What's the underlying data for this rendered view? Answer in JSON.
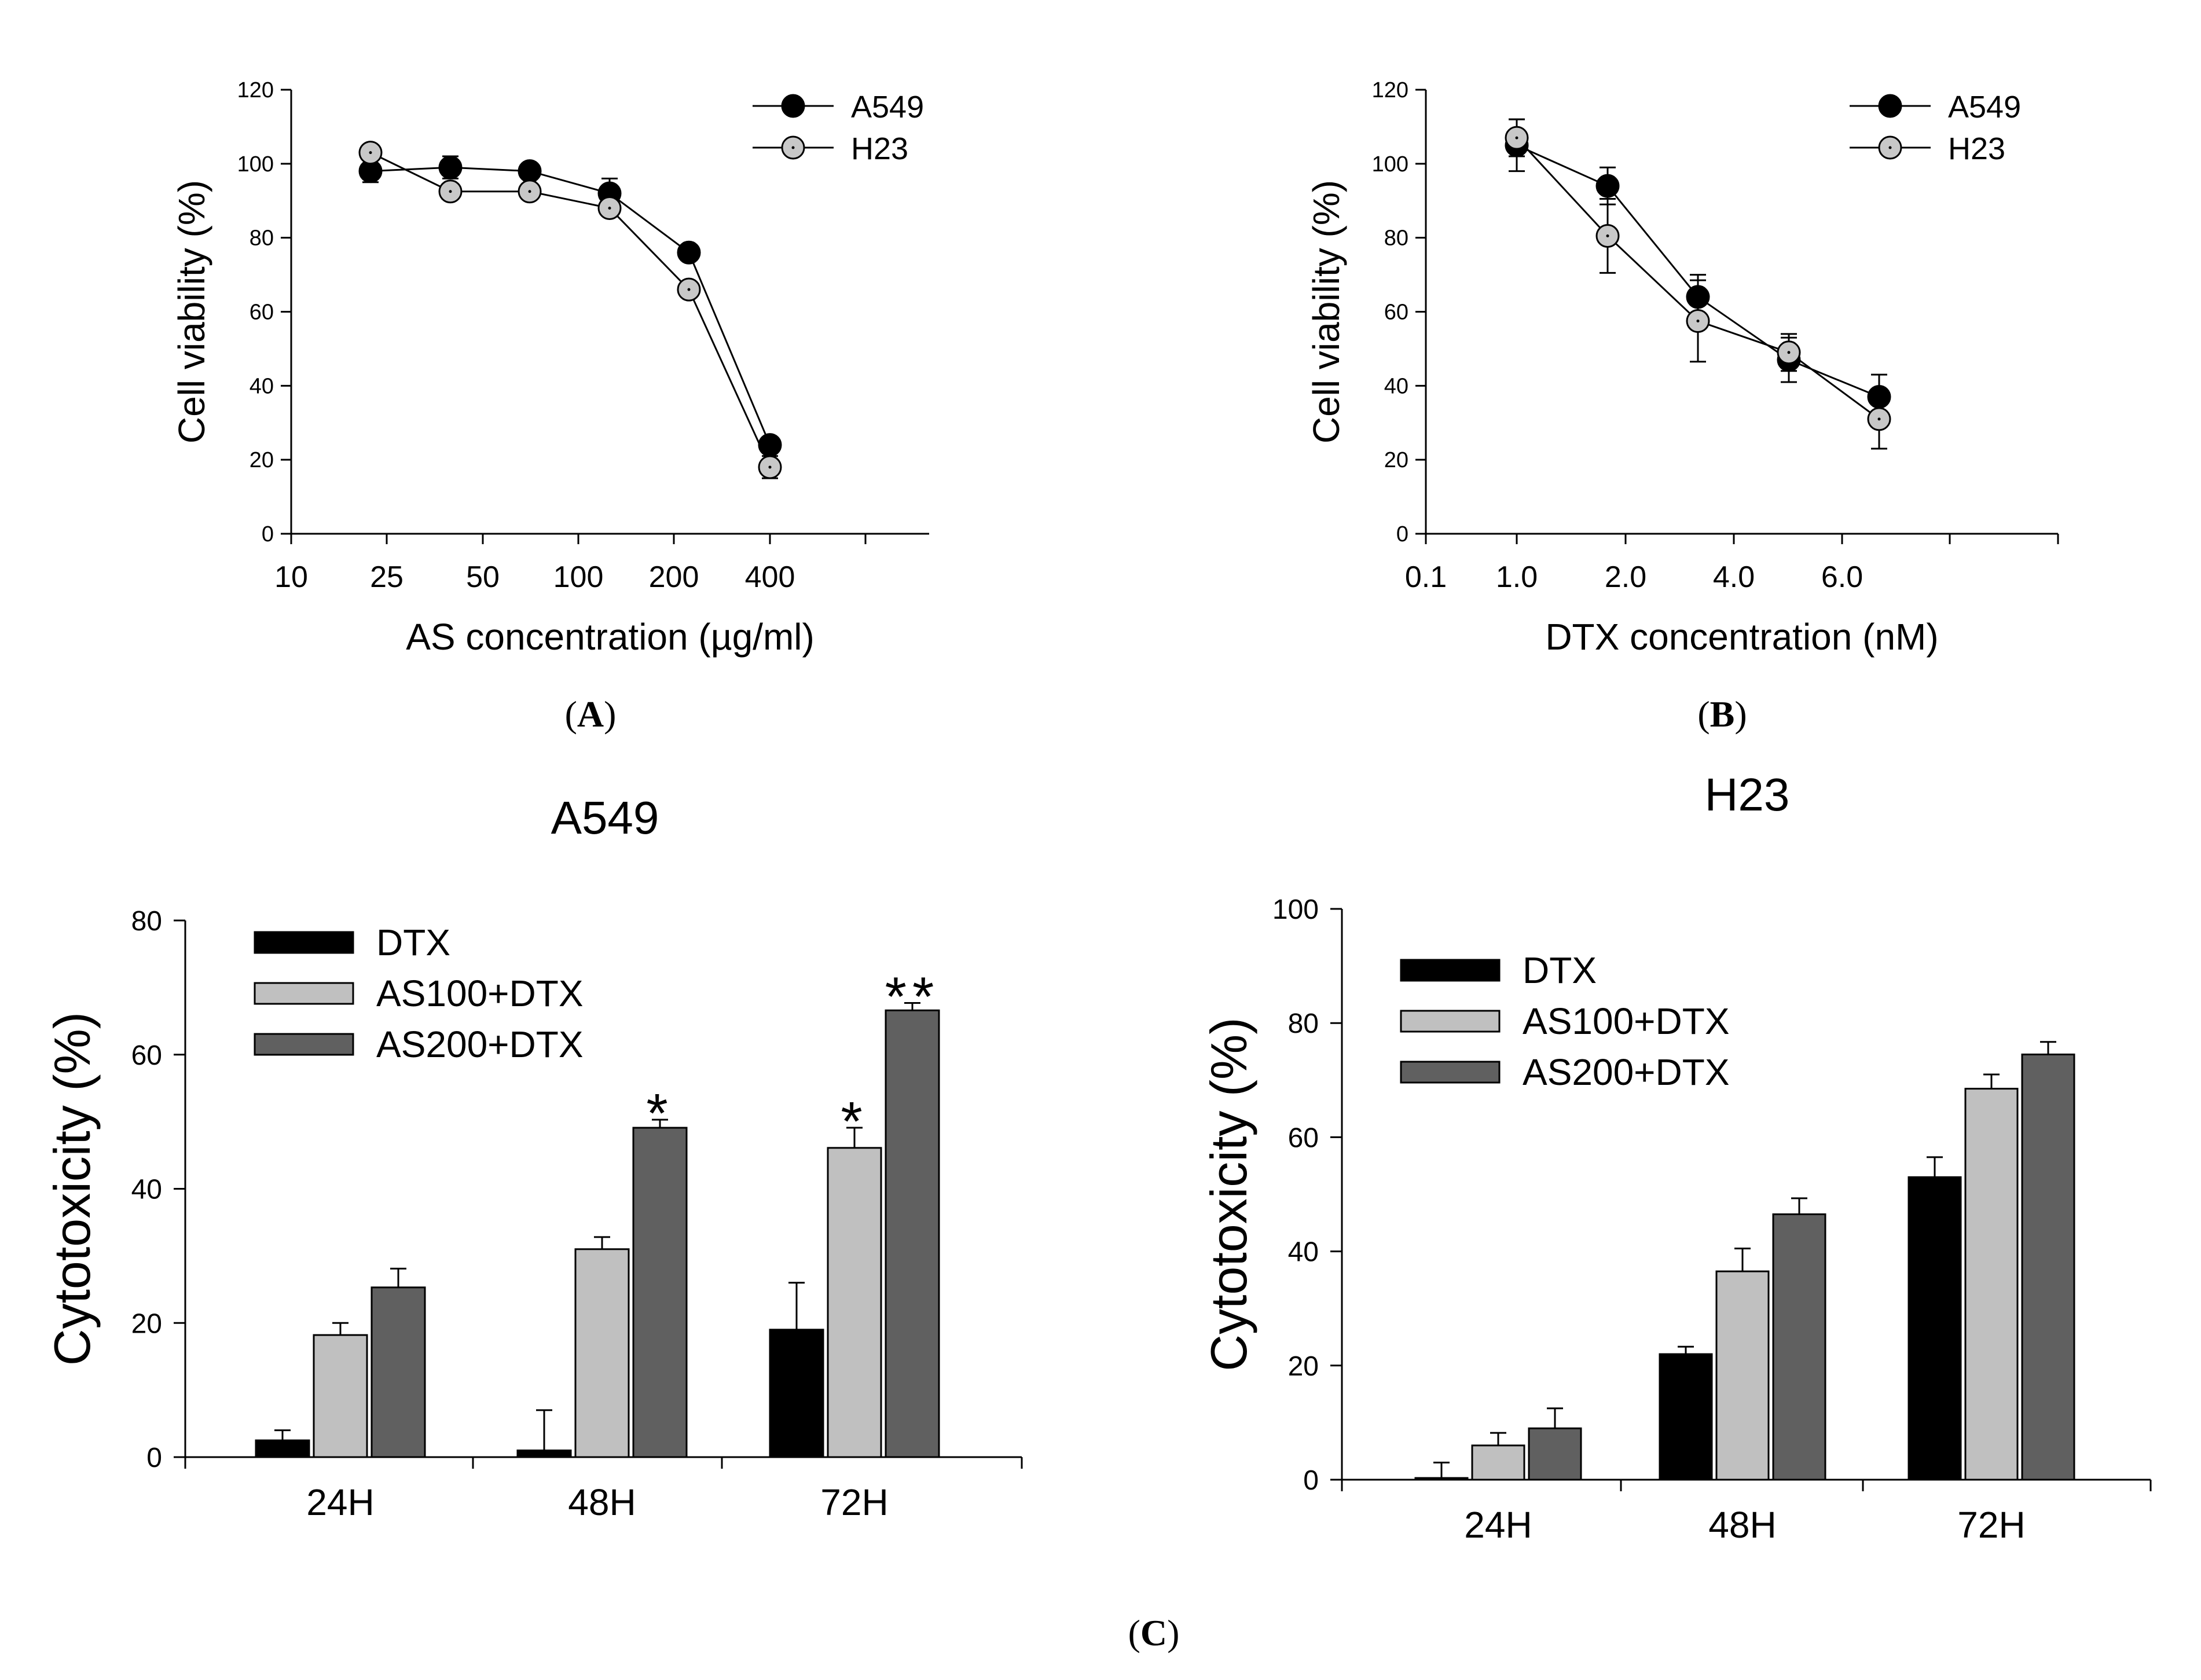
{
  "chart_data": [
    {
      "id": "A",
      "panel_label": "A",
      "type": "line",
      "xlabel": "AS concentration (µg/ml)",
      "ylabel": "Cell viability (%)",
      "x_ticks": [
        "10",
        "25",
        "50",
        "100",
        "200",
        "400"
      ],
      "y_ticks": [
        "0",
        "20",
        "40",
        "60",
        "80",
        "100",
        "120"
      ],
      "ylim": [
        0,
        120
      ],
      "legend_position": "top-right",
      "series": [
        {
          "name": "A549",
          "marker": "filled-circle",
          "color": "#000000",
          "x": [
            "25",
            "50",
            "100",
            "200",
            "400",
            "800"
          ],
          "y": [
            98,
            99,
            98,
            92,
            76,
            24
          ],
          "err": [
            3,
            3,
            2,
            4,
            2,
            2
          ]
        },
        {
          "name": "H23",
          "marker": "open-circle",
          "color": "#c8c8c8",
          "x": [
            "25",
            "50",
            "100",
            "200",
            "400",
            "800"
          ],
          "y": [
            103,
            92.5,
            92.5,
            88,
            66,
            18
          ],
          "err": [
            1,
            1,
            1,
            1,
            1,
            3
          ]
        }
      ]
    },
    {
      "id": "B",
      "panel_label": "B",
      "type": "line",
      "xlabel": "DTX concentration (nM)",
      "ylabel": "Cell viability (%)",
      "x_ticks": [
        "0.1",
        "1.0",
        "2.0",
        "4.0",
        "6.0"
      ],
      "y_ticks": [
        "0",
        "20",
        "40",
        "60",
        "80",
        "100",
        "120"
      ],
      "ylim": [
        0,
        120
      ],
      "legend_position": "top-right",
      "series": [
        {
          "name": "A549",
          "marker": "filled-circle",
          "color": "#000000",
          "x": [
            0.1,
            1.0,
            2.0,
            4.0,
            6.0
          ],
          "y": [
            105,
            94,
            64,
            47,
            37
          ],
          "err": [
            7,
            5,
            6,
            6,
            6
          ]
        },
        {
          "name": "H23",
          "marker": "open-circle",
          "color": "#c8c8c8",
          "x": [
            0.1,
            1.0,
            2.0,
            4.0,
            6.0
          ],
          "y": [
            107,
            80.5,
            57.5,
            49,
            31
          ],
          "err": [
            5,
            10,
            11,
            5,
            8
          ]
        }
      ]
    },
    {
      "id": "C1",
      "title": "A549",
      "type": "bar",
      "ylabel": "Cytotoxicity (%)",
      "categories": [
        "24H",
        "48H",
        "72H"
      ],
      "y_ticks": [
        "0",
        "20",
        "40",
        "60",
        "80"
      ],
      "ylim": [
        0,
        80
      ],
      "legend_position": "top-left",
      "series": [
        {
          "name": "DTX",
          "color": "#000000",
          "values": [
            2.5,
            1,
            19
          ],
          "err": [
            1.5,
            6,
            7
          ]
        },
        {
          "name": "AS100+DTX",
          "color": "#c0c0c0",
          "values": [
            18.2,
            31,
            46.1
          ],
          "err": [
            1.8,
            1.8,
            3
          ]
        },
        {
          "name": "AS200+DTX",
          "color": "#606060",
          "values": [
            25.3,
            49.1,
            66.6
          ],
          "err": [
            2.8,
            1.2,
            1.1
          ]
        }
      ],
      "annotations": [
        {
          "text": "*",
          "category": "48H",
          "series": "AS200+DTX"
        },
        {
          "text": "*",
          "category": "72H",
          "series": "AS100+DTX"
        },
        {
          "text": "**",
          "category": "72H",
          "series": "AS200+DTX"
        }
      ]
    },
    {
      "id": "C2",
      "title": "H23",
      "type": "bar",
      "ylabel": "Cytotoxicity (%)",
      "categories": [
        "24H",
        "48H",
        "72H"
      ],
      "y_ticks": [
        "0",
        "20",
        "40",
        "60",
        "80",
        "100"
      ],
      "ylim": [
        0,
        100
      ],
      "legend_position": "top-left",
      "series": [
        {
          "name": "DTX",
          "color": "#000000",
          "values": [
            0.3,
            22,
            53
          ],
          "err": [
            2.7,
            1.3,
            3.5
          ]
        },
        {
          "name": "AS100+DTX",
          "color": "#c0c0c0",
          "values": [
            6,
            36.5,
            68.5
          ],
          "err": [
            2.2,
            4,
            2.5
          ]
        },
        {
          "name": "AS200+DTX",
          "color": "#606060",
          "values": [
            9,
            46.5,
            74.5
          ],
          "err": [
            3.5,
            2.8,
            2.2
          ]
        }
      ],
      "annotations": []
    }
  ],
  "figure": {
    "panel_c_label": "C"
  }
}
